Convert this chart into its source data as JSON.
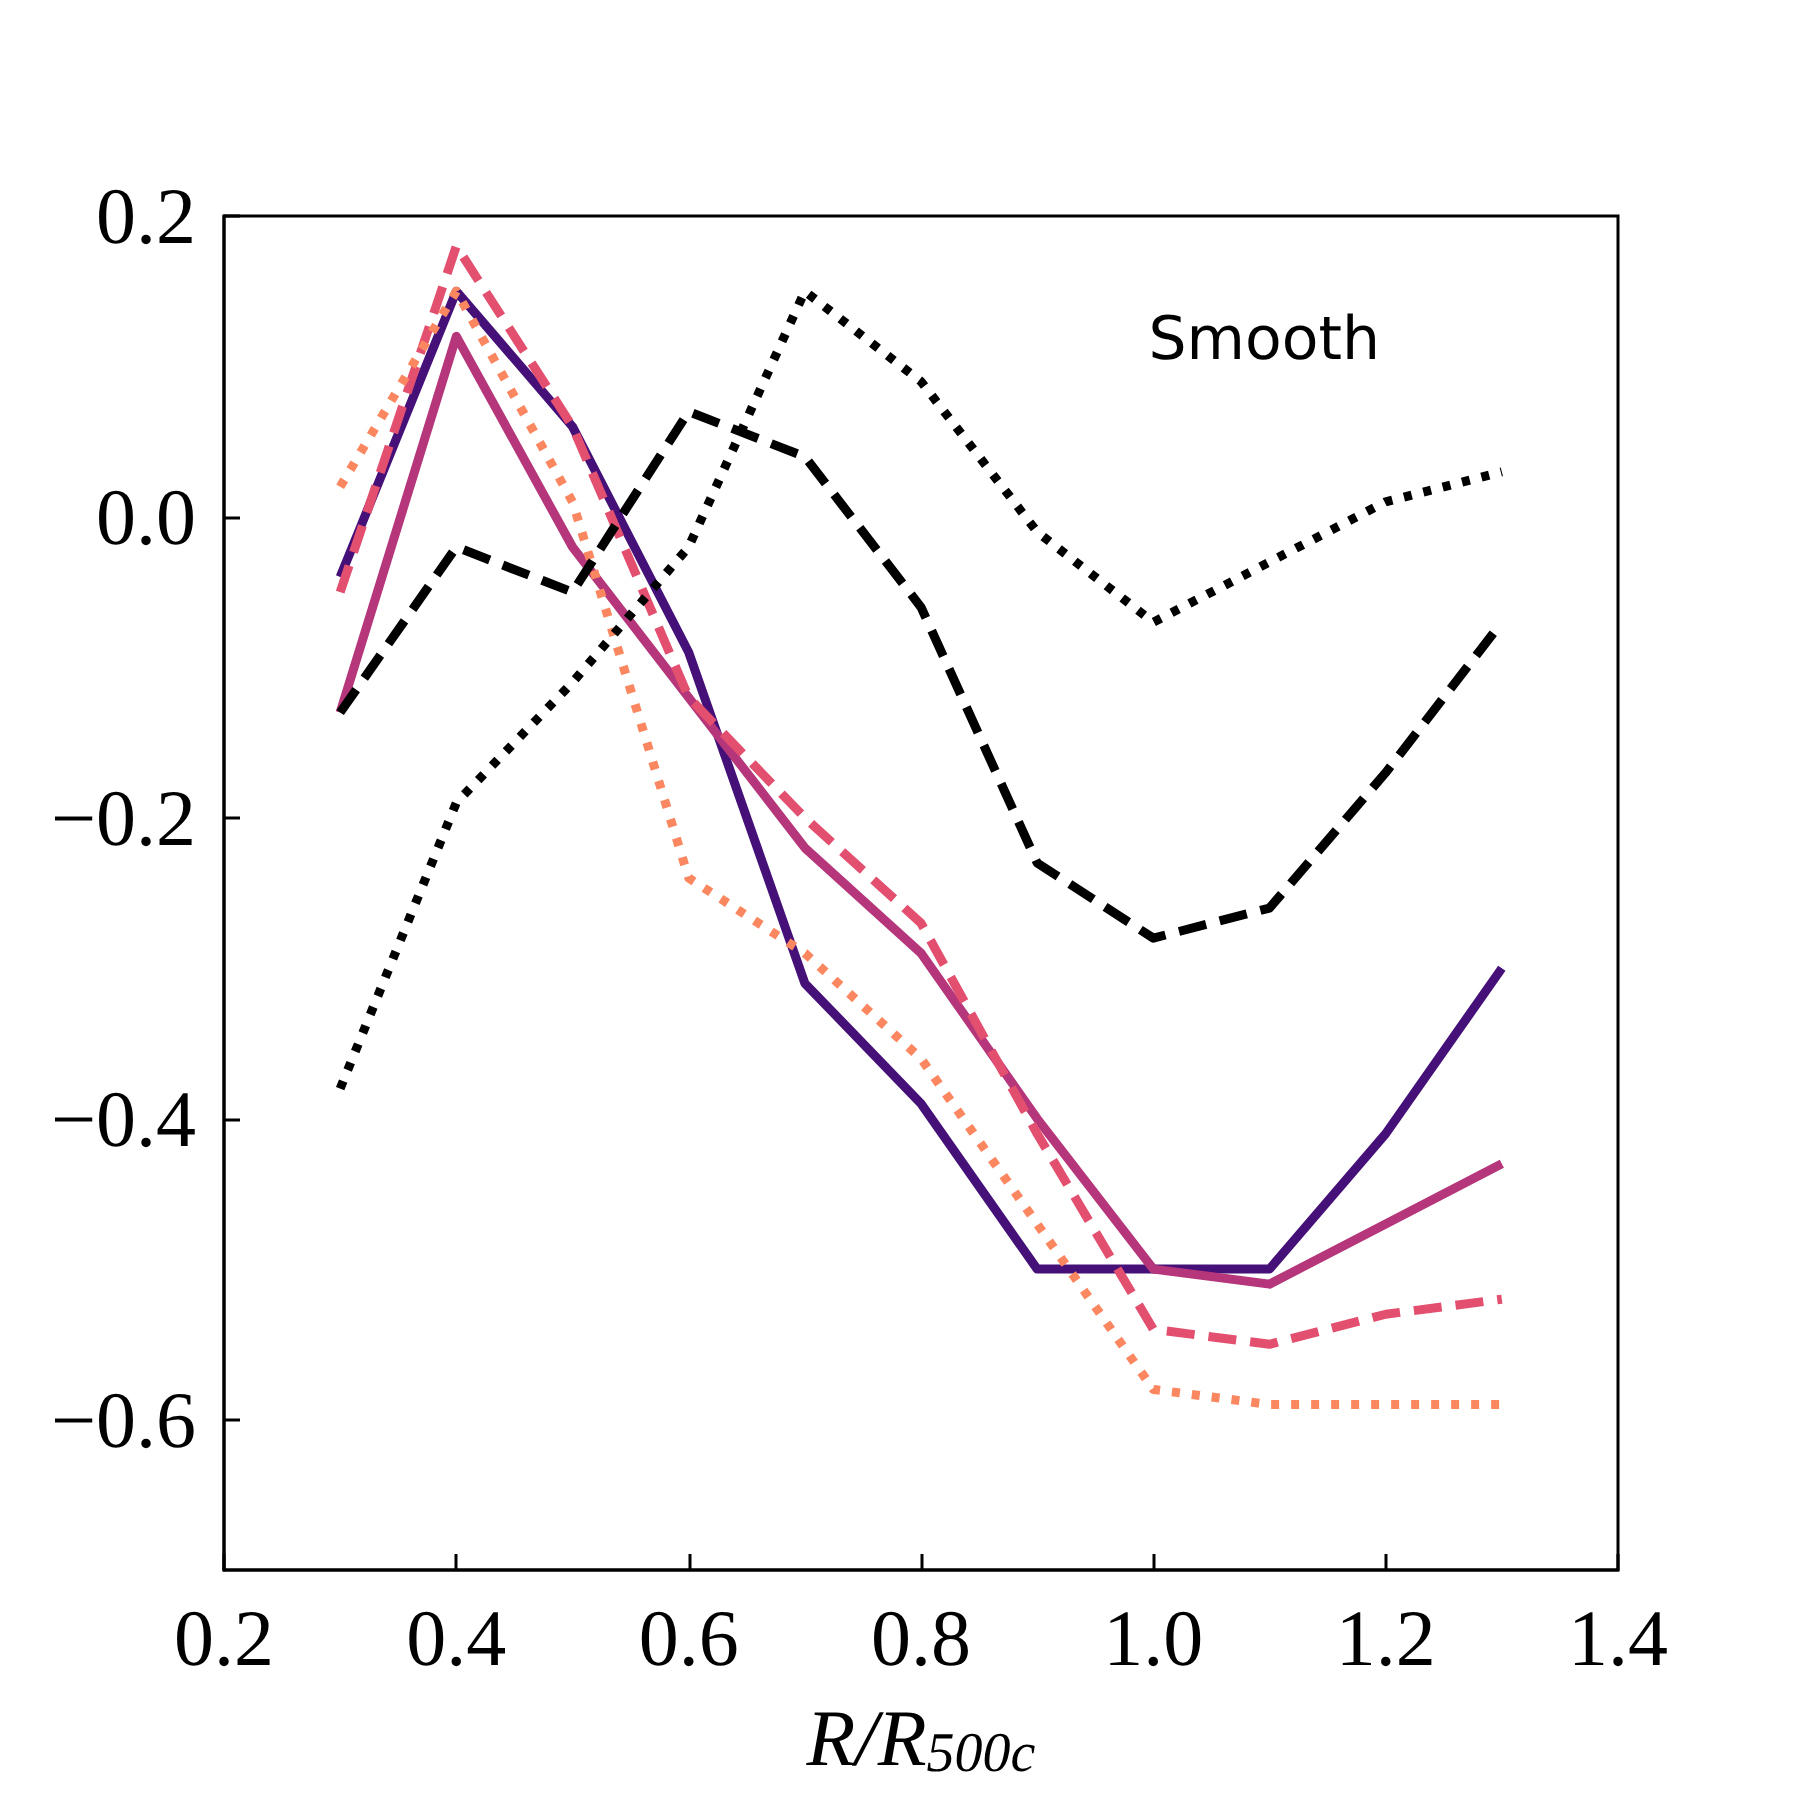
{
  "chart_data": {
    "type": "line",
    "xlabel": "R/R$_{500c}$",
    "annotations": [
      "Smooth"
    ],
    "x": [
      0.3,
      0.4,
      0.5,
      0.6,
      0.7,
      0.8,
      0.9,
      1.0,
      1.1,
      1.2,
      1.3
    ],
    "series": [
      {
        "color": "#451077",
        "line_style": "solid",
        "values": [
          -0.04,
          0.15,
          0.06,
          -0.09,
          -0.31,
          -0.39,
          -0.5,
          -0.5,
          -0.5,
          -0.41,
          -0.3
        ]
      },
      {
        "color": "#b5367a",
        "line_style": "solid",
        "values": [
          -0.13,
          0.12,
          -0.02,
          -0.12,
          -0.22,
          -0.29,
          -0.4,
          -0.5,
          -0.51,
          -0.47,
          -0.43
        ]
      },
      {
        "color": "#e34f6f",
        "line_style": "dashed",
        "values": [
          -0.05,
          0.18,
          0.06,
          -0.12,
          -0.2,
          -0.27,
          -0.41,
          -0.54,
          -0.55,
          -0.53,
          -0.52
        ]
      },
      {
        "color": "#fb8761",
        "line_style": "dotted",
        "values": [
          0.02,
          0.15,
          0.01,
          -0.24,
          -0.29,
          -0.36,
          -0.47,
          -0.58,
          -0.59,
          -0.59,
          -0.59
        ]
      },
      {
        "color": "#000000",
        "line_style": "dashed",
        "values": [
          -0.13,
          -0.02,
          -0.05,
          0.07,
          0.04,
          -0.06,
          -0.23,
          -0.28,
          -0.26,
          -0.17,
          -0.07
        ]
      },
      {
        "color": "#000000",
        "line_style": "dotted",
        "values": [
          -0.38,
          -0.19,
          -0.11,
          -0.02,
          0.15,
          0.09,
          -0.01,
          -0.07,
          -0.03,
          0.01,
          0.03
        ]
      }
    ],
    "xlim": [
      0.2,
      1.4
    ],
    "xticks": [
      0.2,
      0.4,
      0.6,
      0.8,
      {
        "value": 1.0,
        "label": "1.0"
      },
      1.2,
      1.4
    ],
    "ylim": [
      -0.7,
      0.2
    ],
    "yticks": [
      {
        "value": -0.6,
        "label": "−0.6"
      },
      {
        "value": -0.4,
        "label": "−0.4"
      },
      {
        "value": -0.2,
        "label": "−0.2"
      },
      {
        "value": 0,
        "label": "0.0"
      },
      0.2
    ],
    "marker": "none"
  }
}
